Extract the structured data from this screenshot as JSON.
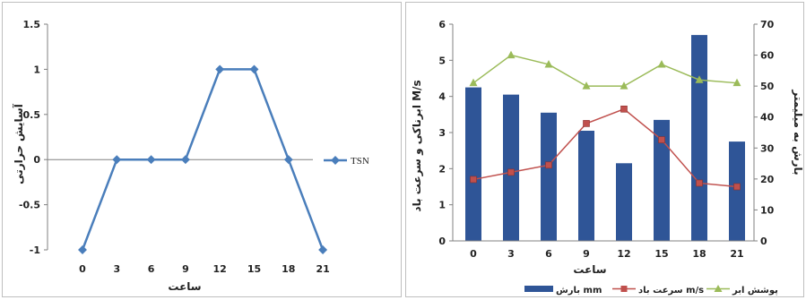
{
  "chart_data": [
    {
      "type": "line",
      "x": [
        0,
        3,
        6,
        9,
        12,
        15,
        18,
        21
      ],
      "series": [
        {
          "name": "TSN",
          "values": [
            -1,
            0,
            0,
            0,
            1,
            1,
            0,
            -1
          ],
          "color": "#4A7EBB"
        }
      ],
      "xlabel": "ساعت",
      "ylabel": "آسایش حرارتی",
      "ylim": [
        -1,
        1.5
      ],
      "yticks": [
        "1.5",
        "1",
        "0.5",
        "0",
        "-0.5",
        "-1"
      ],
      "xticks": [
        "0",
        "3",
        "6",
        "9",
        "12",
        "15",
        "18",
        "21"
      ],
      "legend_position": "right",
      "grid": false
    },
    {
      "type": "bar+line",
      "x": [
        0,
        3,
        6,
        9,
        12,
        15,
        18,
        21
      ],
      "xticks": [
        "0",
        "3",
        "6",
        "9",
        "12",
        "15",
        "18",
        "21"
      ],
      "series": [
        {
          "name": "بارش mm",
          "type": "bar",
          "axis": "left",
          "values": [
            4.25,
            4.05,
            3.55,
            3.05,
            2.15,
            3.35,
            5.7,
            2.75
          ],
          "color": "#2F5597"
        },
        {
          "name": "سرعت باد m/s",
          "type": "line",
          "axis": "left",
          "values": [
            1.7,
            1.9,
            2.1,
            3.25,
            3.65,
            2.8,
            1.6,
            1.5
          ],
          "color": "#C0504D"
        },
        {
          "name": "پوشش ابر",
          "type": "line",
          "axis": "right",
          "values": [
            51,
            60,
            57,
            50,
            50,
            57,
            52,
            51
          ],
          "color": "#9BBB59"
        }
      ],
      "xlabel": "ساعت",
      "ylabel_left": "ابرناکی و سرعت باد M/s",
      "ylabel_right": "بارش به میلیمتر",
      "ylim_left": [
        0,
        6
      ],
      "ylim_right": [
        0,
        70
      ],
      "yticks_left": [
        "6",
        "5",
        "4",
        "3",
        "2",
        "1",
        "0"
      ],
      "yticks_right": [
        "70",
        "60",
        "50",
        "40",
        "30",
        "20",
        "10",
        "0"
      ],
      "legend_position": "bottom",
      "grid": false
    }
  ]
}
